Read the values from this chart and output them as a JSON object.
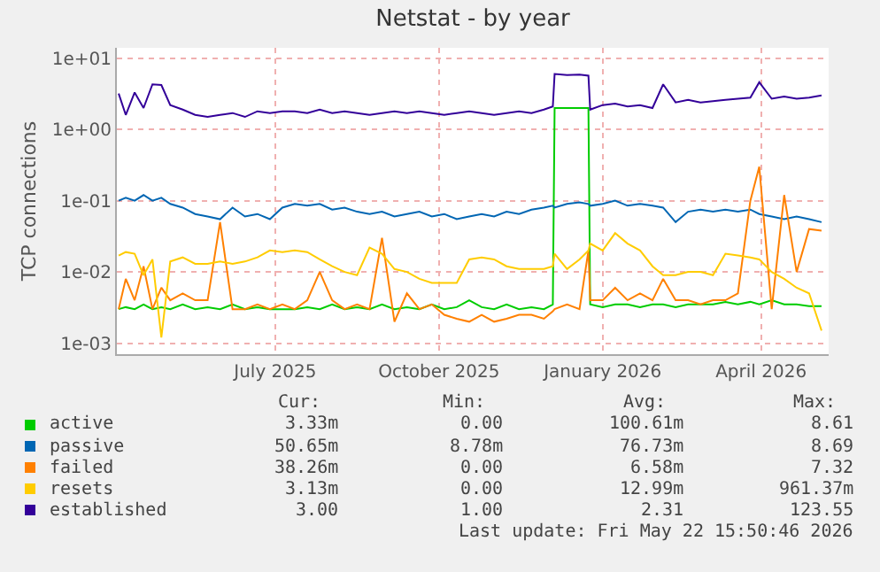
{
  "chart_data": {
    "type": "line",
    "title": "Netstat - by year",
    "ylabel": "TCP connections",
    "log": true,
    "grid": true,
    "legend": "bottom",
    "marker": "none",
    "line_style": "solid",
    "xlim": [
      "2025-04-18",
      "2026-05-23"
    ],
    "xticks": [
      {
        "value": "2025-07-16",
        "label": "July 2025"
      },
      {
        "value": "2025-10-16",
        "label": "October 2025"
      },
      {
        "value": "2026-01-16",
        "label": "January 2026"
      },
      {
        "value": "2026-04-15",
        "label": "April 2026"
      }
    ],
    "ylim": [
      0.0007,
      14
    ],
    "yticks": [
      {
        "value": 0.001,
        "label": "1e-03"
      },
      {
        "value": 0.01,
        "label": "1e-02"
      },
      {
        "value": 0.1,
        "label": "1e-01"
      },
      {
        "value": 1,
        "label": "1e+00"
      },
      {
        "value": 10,
        "label": "1e+01"
      }
    ],
    "x": [
      "2025-04-19",
      "2025-04-23",
      "2025-04-28",
      "2025-05-03",
      "2025-05-08",
      "2025-05-13",
      "2025-05-18",
      "2025-05-25",
      "2025-06-01",
      "2025-06-08",
      "2025-06-15",
      "2025-06-22",
      "2025-06-29",
      "2025-07-06",
      "2025-07-13",
      "2025-07-20",
      "2025-07-27",
      "2025-08-03",
      "2025-08-10",
      "2025-08-17",
      "2025-08-24",
      "2025-08-31",
      "2025-09-07",
      "2025-09-14",
      "2025-09-21",
      "2025-09-28",
      "2025-10-05",
      "2025-10-12",
      "2025-10-19",
      "2025-10-26",
      "2025-11-02",
      "2025-11-09",
      "2025-11-16",
      "2025-11-23",
      "2025-11-30",
      "2025-12-07",
      "2025-12-14",
      "2025-12-19",
      "2025-12-20",
      "2025-12-27",
      "2026-01-03",
      "2026-01-08",
      "2026-01-09",
      "2026-01-16",
      "2026-01-23",
      "2026-01-30",
      "2026-02-06",
      "2026-02-13",
      "2026-02-19",
      "2026-02-26",
      "2026-03-05",
      "2026-03-12",
      "2026-03-19",
      "2026-03-26",
      "2026-04-02",
      "2026-04-09",
      "2026-04-14",
      "2026-04-21",
      "2026-04-28",
      "2026-05-05",
      "2026-05-12",
      "2026-05-19"
    ],
    "series": [
      {
        "name": "active",
        "color": "#00cc00",
        "values": [
          0.003,
          0.0032,
          0.003,
          0.0035,
          0.003,
          0.0032,
          0.003,
          0.0035,
          0.003,
          0.0032,
          0.003,
          0.0035,
          0.003,
          0.0032,
          0.003,
          0.003,
          0.003,
          0.0032,
          0.003,
          0.0035,
          0.003,
          0.0032,
          0.003,
          0.0035,
          0.003,
          0.0032,
          0.003,
          0.0035,
          0.003,
          0.0032,
          0.004,
          0.0032,
          0.003,
          0.0035,
          0.003,
          0.0032,
          0.003,
          0.0035,
          2.0,
          2.0,
          2.0,
          2.0,
          0.0035,
          0.0032,
          0.0035,
          0.0035,
          0.0032,
          0.0035,
          0.0035,
          0.0032,
          0.0035,
          0.0035,
          0.0035,
          0.0038,
          0.0035,
          0.0038,
          0.0035,
          0.004,
          0.0035,
          0.0035,
          0.0033,
          0.0033
        ]
      },
      {
        "name": "passive",
        "color": "#0066b3",
        "values": [
          0.1,
          0.11,
          0.1,
          0.12,
          0.1,
          0.11,
          0.09,
          0.08,
          0.065,
          0.06,
          0.055,
          0.08,
          0.06,
          0.065,
          0.055,
          0.08,
          0.09,
          0.085,
          0.09,
          0.075,
          0.08,
          0.07,
          0.065,
          0.07,
          0.06,
          0.065,
          0.07,
          0.06,
          0.065,
          0.055,
          0.06,
          0.065,
          0.06,
          0.07,
          0.065,
          0.075,
          0.08,
          0.085,
          0.08,
          0.09,
          0.095,
          0.09,
          0.085,
          0.09,
          0.1,
          0.085,
          0.09,
          0.085,
          0.08,
          0.05,
          0.07,
          0.075,
          0.07,
          0.075,
          0.07,
          0.075,
          0.065,
          0.06,
          0.055,
          0.06,
          0.055,
          0.05
        ]
      },
      {
        "name": "failed",
        "color": "#ff8000",
        "values": [
          0.003,
          0.008,
          0.004,
          0.012,
          0.003,
          0.006,
          0.004,
          0.005,
          0.004,
          0.004,
          0.05,
          0.003,
          0.003,
          0.0035,
          0.003,
          0.0035,
          0.003,
          0.004,
          0.01,
          0.004,
          0.003,
          0.0035,
          0.003,
          0.03,
          0.002,
          0.005,
          0.003,
          0.0035,
          0.0025,
          0.0022,
          0.002,
          0.0025,
          0.002,
          0.0022,
          0.0025,
          0.0025,
          0.0022,
          0.0028,
          0.003,
          0.0035,
          0.003,
          0.02,
          0.004,
          0.004,
          0.006,
          0.004,
          0.005,
          0.004,
          0.008,
          0.004,
          0.004,
          0.0035,
          0.004,
          0.004,
          0.005,
          0.1,
          0.3,
          0.003,
          0.12,
          0.01,
          0.04,
          0.038
        ]
      },
      {
        "name": "resets",
        "color": "#ffcc00",
        "values": [
          0.017,
          0.019,
          0.018,
          0.009,
          0.015,
          0.0012,
          0.014,
          0.016,
          0.013,
          0.013,
          0.014,
          0.013,
          0.014,
          0.016,
          0.02,
          0.019,
          0.02,
          0.019,
          0.015,
          0.012,
          0.01,
          0.009,
          0.022,
          0.018,
          0.011,
          0.01,
          0.008,
          0.007,
          0.007,
          0.007,
          0.015,
          0.016,
          0.015,
          0.012,
          0.011,
          0.011,
          0.011,
          0.012,
          0.018,
          0.011,
          0.015,
          0.02,
          0.025,
          0.02,
          0.035,
          0.025,
          0.02,
          0.012,
          0.009,
          0.009,
          0.01,
          0.01,
          0.009,
          0.018,
          0.017,
          0.016,
          0.015,
          0.01,
          0.008,
          0.006,
          0.005,
          0.0015
        ]
      },
      {
        "name": "established",
        "color": "#330099",
        "values": [
          3.2,
          1.6,
          3.3,
          2.0,
          4.3,
          4.2,
          2.2,
          1.9,
          1.6,
          1.5,
          1.6,
          1.7,
          1.5,
          1.8,
          1.7,
          1.8,
          1.8,
          1.7,
          1.9,
          1.7,
          1.8,
          1.7,
          1.6,
          1.7,
          1.8,
          1.7,
          1.8,
          1.7,
          1.6,
          1.7,
          1.8,
          1.7,
          1.6,
          1.7,
          1.8,
          1.7,
          1.9,
          2.1,
          6.0,
          5.8,
          5.9,
          5.7,
          1.9,
          2.2,
          2.3,
          2.1,
          2.2,
          2.0,
          4.3,
          2.4,
          2.6,
          2.4,
          2.5,
          2.6,
          2.7,
          2.8,
          4.6,
          2.7,
          2.9,
          2.7,
          2.8,
          3.0
        ]
      }
    ],
    "annotations": [
      "Cur:",
      "Min:",
      "Avg:",
      "Max:",
      "3.33m",
      "0.00",
      "100.61m",
      "8.61",
      "50.65m",
      "8.78m",
      "76.73m",
      "8.69",
      "38.26m",
      "0.00",
      "6.58m",
      "7.32",
      "3.13m",
      "0.00",
      "12.99m",
      "961.37m",
      "3.00",
      "1.00",
      "2.31",
      "123.55",
      "Last update: Fri May 22 15:50:46 2026"
    ]
  }
}
